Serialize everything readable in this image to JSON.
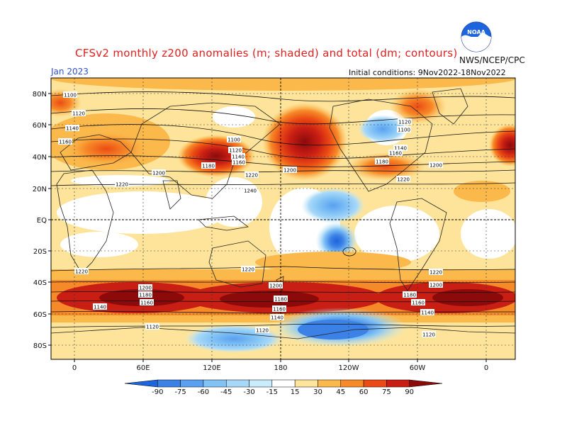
{
  "header": {
    "title": "CFSv2 monthly z200 anomalies (m; shaded) and total (dm; contours)",
    "agency": "NWS/NCEP/CPC",
    "month": "Jan 2023",
    "initial_conditions": "Initial conditions: 9Nov2022-18Nov2022",
    "logo_text": "NOAA"
  },
  "axes": {
    "lat_labels": [
      "80N",
      "60N",
      "40N",
      "20N",
      "EQ",
      "20S",
      "40S",
      "60S",
      "80S"
    ],
    "lon_labels": [
      "0",
      "60E",
      "120E",
      "180",
      "120W",
      "60W",
      "0"
    ]
  },
  "colorbar": {
    "labels": [
      "-90",
      "-75",
      "-60",
      "-45",
      "-30",
      "-15",
      "15",
      "30",
      "45",
      "60",
      "75",
      "90"
    ],
    "colors": [
      "#1e64dc",
      "#3c82e6",
      "#5aa0f0",
      "#82c3f5",
      "#a8d8f8",
      "#c8ecfa",
      "#ffffff",
      "#fde49a",
      "#fbb94b",
      "#f78a28",
      "#eb4b14",
      "#c81e14",
      "#8c0a0a"
    ]
  },
  "contour_labels": {
    "nh": [
      "1100",
      "1120",
      "1140",
      "1160",
      "1100",
      "1120",
      "1140",
      "1160",
      "1180",
      "1200",
      "1220",
      "1220",
      "1200",
      "1240",
      "1120",
      "1140",
      "1160",
      "1180",
      "1200",
      "1220",
      "1100"
    ],
    "sh": [
      "1220",
      "1200",
      "1180",
      "1160",
      "1140",
      "1120",
      "1220",
      "1200",
      "1180",
      "1160",
      "1140",
      "1120",
      "1220",
      "1200",
      "1180",
      "1160",
      "1140",
      "1120"
    ]
  }
}
